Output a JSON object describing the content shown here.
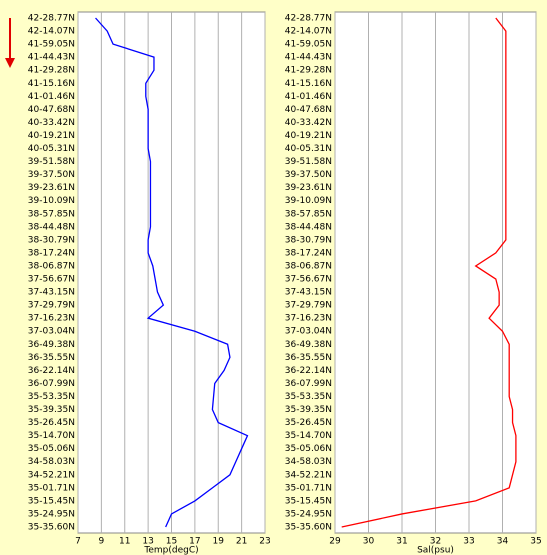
{
  "chart_data": [
    {
      "type": "line",
      "xlabel": "Temp(degC)",
      "categories": [
        "42-28.77N",
        "42-14.07N",
        "41-59.05N",
        "41-44.43N",
        "41-29.28N",
        "41-15.16N",
        "41-01.46N",
        "40-47.68N",
        "40-33.42N",
        "40-19.21N",
        "40-05.31N",
        "39-51.58N",
        "39-37.50N",
        "39-23.61N",
        "39-10.09N",
        "38-57.85N",
        "38-44.48N",
        "38-30.79N",
        "38-17.24N",
        "38-06.87N",
        "37-56.67N",
        "37-43.15N",
        "37-29.79N",
        "37-16.23N",
        "37-03.04N",
        "36-49.38N",
        "36-35.55N",
        "36-22.14N",
        "36-07.99N",
        "35-53.35N",
        "35-39.35N",
        "35-26.45N",
        "35-14.70N",
        "35-05.06N",
        "34-58.03N",
        "34-52.21N",
        "35-01.71N",
        "35-15.45N",
        "35-24.95N",
        "35-35.60N"
      ],
      "series": [
        {
          "color": "#0000ff",
          "values": [
            8.5,
            9.5,
            10,
            13.5,
            13.5,
            12.8,
            12.8,
            13,
            13,
            13,
            13,
            13.2,
            13.2,
            13.2,
            13.2,
            13.2,
            13.2,
            13,
            13,
            13.4,
            13.6,
            13.8,
            14.3,
            13,
            17,
            19.8,
            20,
            19.5,
            18.7,
            18.6,
            18.5,
            19,
            21.5,
            21,
            20.5,
            20,
            18.5,
            17,
            15,
            14.5
          ]
        }
      ],
      "xlim": [
        7,
        23
      ],
      "xticks": [
        7,
        9,
        11,
        13,
        15,
        17,
        19,
        21,
        23
      ],
      "grid": true
    },
    {
      "type": "line",
      "xlabel": "Sal(psu)",
      "categories": [
        "42-28.77N",
        "42-14.07N",
        "41-59.05N",
        "41-44.43N",
        "41-29.28N",
        "41-15.16N",
        "41-01.46N",
        "40-47.68N",
        "40-33.42N",
        "40-19.21N",
        "40-05.31N",
        "39-51.58N",
        "39-37.50N",
        "39-23.61N",
        "39-10.09N",
        "38-57.85N",
        "38-44.48N",
        "38-30.79N",
        "38-17.24N",
        "38-06.87N",
        "37-56.67N",
        "37-43.15N",
        "37-29.79N",
        "37-16.23N",
        "37-03.04N",
        "36-49.38N",
        "36-35.55N",
        "36-22.14N",
        "36-07.99N",
        "35-53.35N",
        "35-39.35N",
        "35-26.45N",
        "35-14.70N",
        "35-05.06N",
        "34-58.03N",
        "34-52.21N",
        "35-01.71N",
        "35-15.45N",
        "35-24.95N",
        "35-35.60N"
      ],
      "series": [
        {
          "color": "#ff0000",
          "values": [
            33.8,
            34.1,
            34.1,
            34.1,
            34.1,
            34.1,
            34.1,
            34.1,
            34.1,
            34.1,
            34.1,
            34.1,
            34.1,
            34.1,
            34.1,
            34.1,
            34.1,
            34.1,
            33.8,
            33.2,
            33.8,
            33.9,
            33.9,
            33.6,
            34,
            34.2,
            34.2,
            34.2,
            34.2,
            34.2,
            34.3,
            34.3,
            34.4,
            34.4,
            34.4,
            34.3,
            34.2,
            33.2,
            31,
            29.2
          ]
        }
      ],
      "xlim": [
        29,
        35
      ],
      "xticks": [
        29,
        30,
        31,
        32,
        33,
        34,
        35
      ],
      "grid": true
    }
  ]
}
